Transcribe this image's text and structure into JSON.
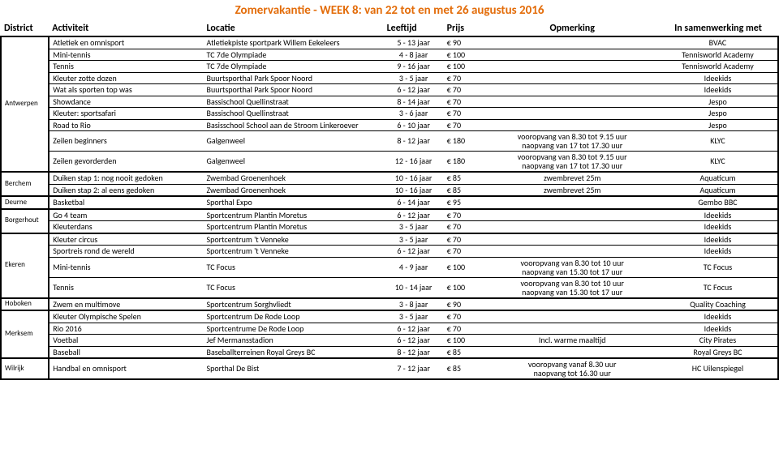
{
  "title": "Zomervakantie - WEEK 8: van 22 tot en met 26 augustus 2016",
  "headers": {
    "district": "District",
    "activity": "Activiteit",
    "location": "Locatie",
    "age": "Leeftijd",
    "price": "Prijs",
    "remark": "Opmerking",
    "partner": "In samenwerking met"
  },
  "groups": [
    {
      "district": "Antwerpen",
      "rows": [
        {
          "a": "Atletiek en omnisport",
          "l": "Atletiekpiste sportpark Willem Eekeleers",
          "g": "5 - 13 jaar",
          "p": "€ 90",
          "r": "",
          "s": "BVAC"
        },
        {
          "a": "Mini-tennis",
          "l": "TC 7de Olympiade",
          "g": "4 - 8 jaar",
          "p": "€ 100",
          "r": "",
          "s": "Tennisworld Academy"
        },
        {
          "a": "Tennis",
          "l": "TC 7de Olympiade",
          "g": "9 - 16 jaar",
          "p": "€ 100",
          "r": "",
          "s": "Tennisworld Academy"
        },
        {
          "a": "Kleuter zotte dozen",
          "l": "Buurtsporthal Park Spoor Noord",
          "g": "3 - 5 jaar",
          "p": "€ 70",
          "r": "",
          "s": "Ideekids"
        },
        {
          "a": "Wat als sporten top was",
          "l": "Buurtsporthal Park Spoor Noord",
          "g": "6 - 12 jaar",
          "p": "€ 70",
          "r": "",
          "s": "Ideekids"
        },
        {
          "a": "Showdance",
          "l": "Bassischool Quellinstraat",
          "g": "8 - 14 jaar",
          "p": "€ 70",
          "r": "",
          "s": "Jespo"
        },
        {
          "a": "Kleuter: sportsafari",
          "l": "Bassischool Quellinstraat",
          "g": "3 - 6 jaar",
          "p": "€ 70",
          "r": "",
          "s": "Jespo"
        },
        {
          "a": "Road to Rio",
          "l": "Basisschool School aan de Stroom Linkeroever",
          "g": "6 - 10 jaar",
          "p": "€ 70",
          "r": "",
          "s": "Jespo"
        },
        {
          "a": "Zeilen beginners",
          "l": "Galgenweel",
          "g": "8 - 12 jaar",
          "p": "€ 180",
          "r": "vooropvang van 8.30 tot 9.15 uur\nnaopvang van 17 tot 17.30 uur",
          "s": "KLYC"
        },
        {
          "a": "Zeilen gevorderden",
          "l": "Galgenweel",
          "g": "12 - 16 jaar",
          "p": "€ 180",
          "r": "vooropvang van 8.30 tot 9.15 uur\nnaopvang van 17 tot 17.30 uur",
          "s": "KLYC"
        }
      ]
    },
    {
      "district": "Berchem",
      "rows": [
        {
          "a": "Duiken stap 1: nog nooit gedoken",
          "l": "Zwembad Groenenhoek",
          "g": "10 - 16 jaar",
          "p": "€ 85",
          "r": "zwembrevet 25m",
          "s": "Aquaticum"
        },
        {
          "a": "Duiken stap 2: al eens gedoken",
          "l": "Zwembad Groenenhoek",
          "g": "10 - 16 jaar",
          "p": "€ 85",
          "r": "zwembrevet 25m",
          "s": "Aquaticum"
        }
      ]
    },
    {
      "district": "Deurne",
      "rows": [
        {
          "a": "Basketbal",
          "l": "Sporthal Expo",
          "g": "6 - 14 jaar",
          "p": "€ 95",
          "r": "",
          "s": "Gembo BBC"
        }
      ]
    },
    {
      "district": "Borgerhout",
      "rows": [
        {
          "a": "Go 4 team",
          "l": "Sportcentrum Plantin Moretus",
          "g": "6 - 12 jaar",
          "p": "€ 70",
          "r": "",
          "s": "Ideekids"
        },
        {
          "a": "Kleuterdans",
          "l": "Sportcentrum Plantin Moretus",
          "g": "3 - 5 jaar",
          "p": "€ 70",
          "r": "",
          "s": "Ideekids"
        }
      ]
    },
    {
      "district": "Ekeren",
      "rows": [
        {
          "a": "Kleuter circus",
          "l": "Sportcentrum 't Venneke",
          "g": "3 - 5 jaar",
          "p": "€ 70",
          "r": "",
          "s": "Ideekids"
        },
        {
          "a": "Sportreis rond de wereld",
          "l": "Sportcentrum 't Venneke",
          "g": "6 - 12 jaar",
          "p": "€ 70",
          "r": "",
          "s": "Ideekids"
        },
        {
          "a": "Mini-tennis",
          "l": "TC Focus",
          "g": "4 - 9 jaar",
          "p": "€ 100",
          "r": "vooropvang van 8.30 tot 10 uur\nnaopvang van 15.30 tot 17 uur",
          "s": "TC Focus"
        },
        {
          "a": "Tennis",
          "l": "TC Focus",
          "g": "10 - 14 jaar",
          "p": "€ 100",
          "r": "vooropvang van 8.30 tot 10 uur\nnaopvang van 15.30 tot 17 uur",
          "s": "TC Focus"
        }
      ]
    },
    {
      "district": "Hoboken",
      "rows": [
        {
          "a": "Zwem en multimove",
          "l": "Sportcentrum Sorghvliedt",
          "g": "3 - 8 jaar",
          "p": "€ 90",
          "r": "",
          "s": "Quality Coaching"
        }
      ]
    },
    {
      "district": "Merksem",
      "rows": [
        {
          "a": "Kleuter Olympische Spelen",
          "l": "Sportcentrum De Rode Loop",
          "g": "3 - 5 jaar",
          "p": "€ 70",
          "r": "",
          "s": "Ideekids"
        },
        {
          "a": "Rio 2016",
          "l": "Sportcentrume De Rode Loop",
          "g": "6 - 12 jaar",
          "p": "€ 70",
          "r": "",
          "s": "Ideekids"
        },
        {
          "a": "Voetbal",
          "l": "Jef Mermansstadion",
          "g": "6 - 12 jaar",
          "p": "€ 100",
          "r": "Incl. warme maaltijd",
          "s": "City Pirates"
        },
        {
          "a": "Baseball",
          "l": "Baseballterreinen Royal Greys BC",
          "g": "8 - 12 jaar",
          "p": "€ 85",
          "r": "",
          "s": "Royal Greys BC"
        }
      ]
    },
    {
      "district": "Wilrijk",
      "rows": [
        {
          "a": "Handbal en omnisport",
          "l": "Sporthal De Bist",
          "g": "7 - 12 jaar",
          "p": "€ 85",
          "r": "vooropvang vanaf 8.30 uur\nnaopvang tot 16.30 uur",
          "s": "HC Uilenspiegel"
        }
      ]
    }
  ]
}
